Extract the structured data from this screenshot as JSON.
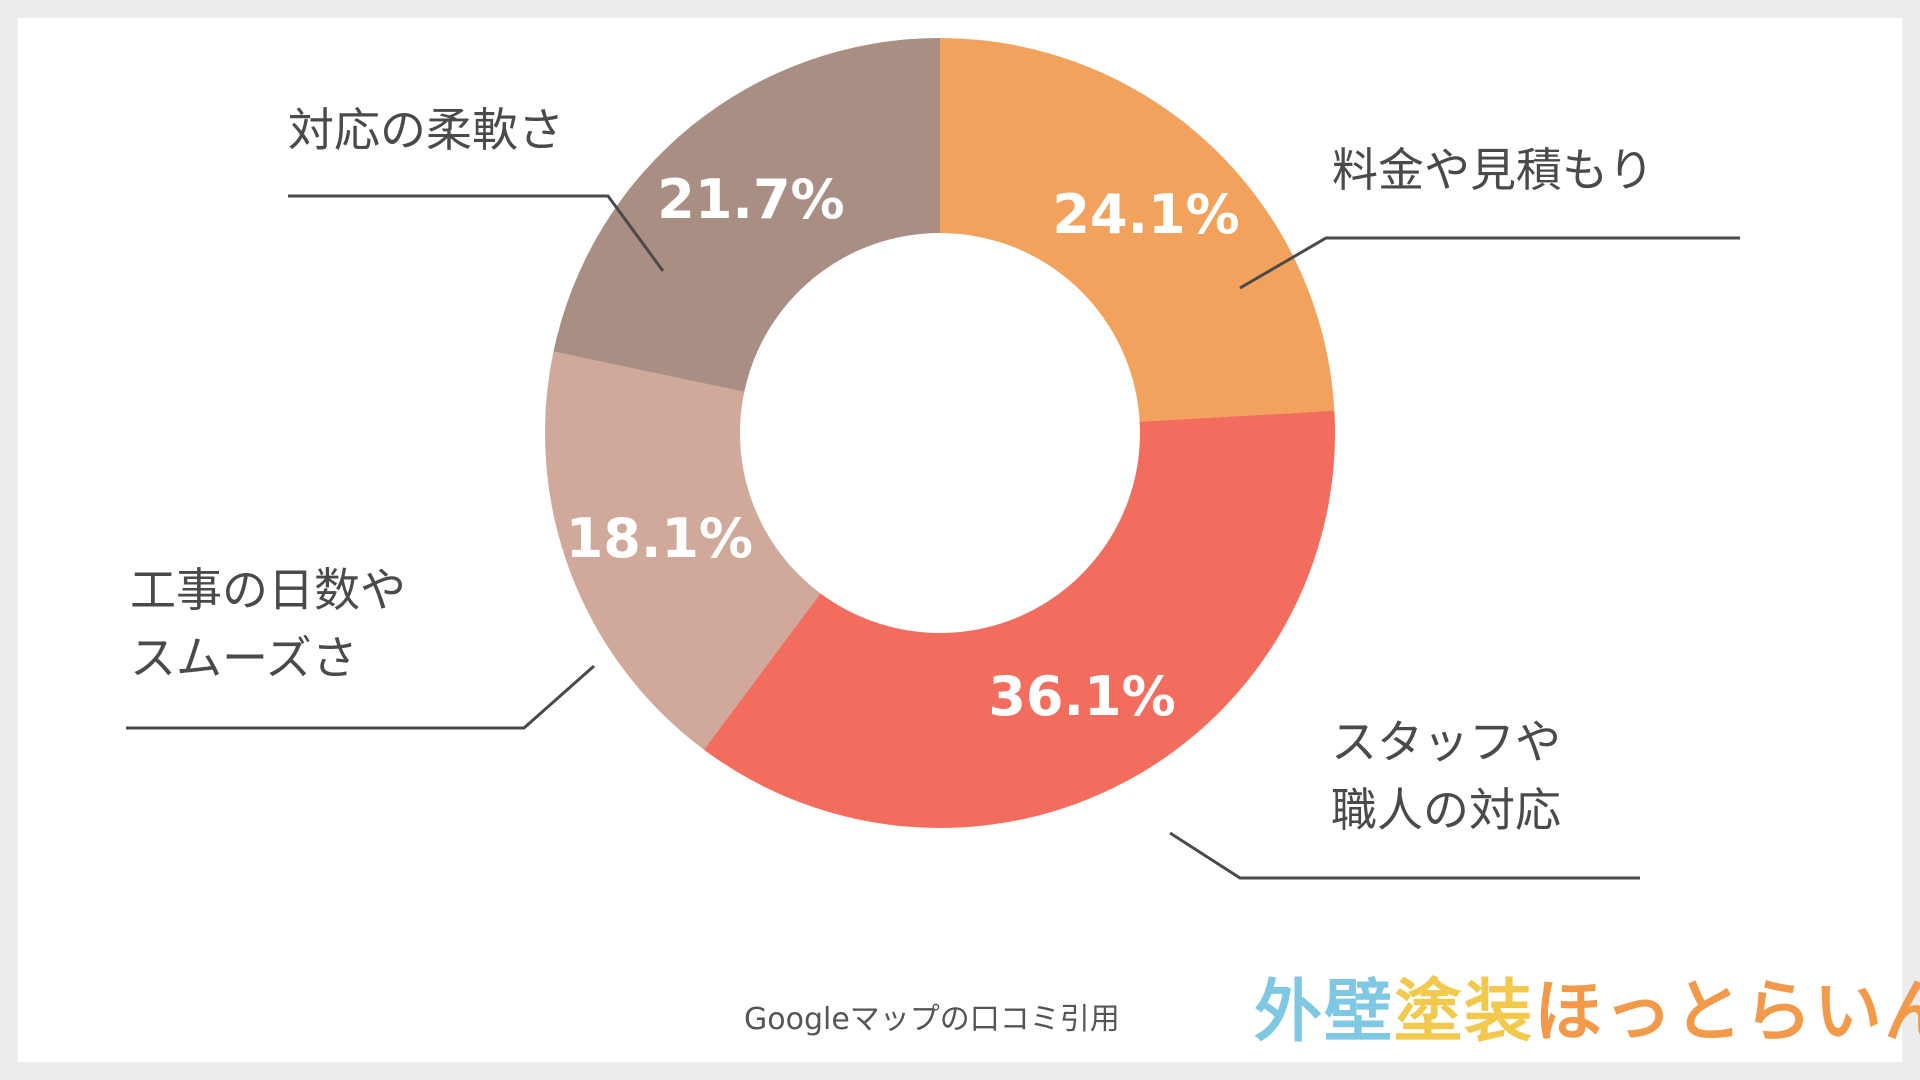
{
  "chart_data": {
    "type": "pie",
    "donut": true,
    "slices": [
      {
        "label_lines": [
          "料金や見積もり"
        ],
        "value": 24.1,
        "value_label": "24.1%",
        "color": "#f2a25c"
      },
      {
        "label_lines": [
          "スタッフや",
          "職人の対応"
        ],
        "value": 36.1,
        "value_label": "36.1%",
        "color": "#f26d5e"
      },
      {
        "label_lines": [
          "工事の日数や",
          "スムーズさ"
        ],
        "value": 18.1,
        "value_label": "18.1%",
        "color": "#d0a99a"
      },
      {
        "label_lines": [
          "対応の柔軟さ"
        ],
        "value": 21.7,
        "value_label": "21.7%",
        "color": "#a98e83"
      }
    ],
    "start": "12 o'clock",
    "direction": "clockwise"
  },
  "source_text": "Googleマップの口コミ引用",
  "logo": {
    "part1": "外壁",
    "part2": "塗装",
    "part3": "ほっとらいん",
    "colors": [
      "#7ec8e3",
      "#f2c94c",
      "#f2994a"
    ]
  }
}
